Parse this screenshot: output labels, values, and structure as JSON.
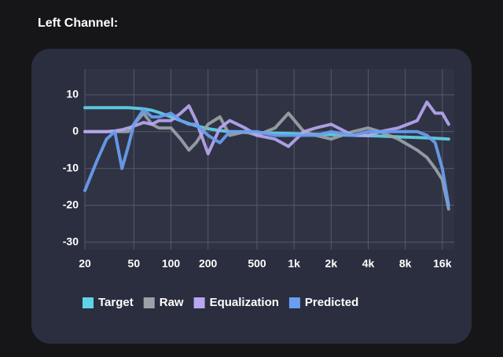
{
  "chart_data": {
    "type": "line",
    "title": "Left Channel:",
    "xscale": "log",
    "grid": true,
    "x": [
      20,
      25,
      30,
      35,
      40,
      45,
      50,
      60,
      70,
      80,
      100,
      120,
      140,
      160,
      200,
      250,
      300,
      400,
      500,
      700,
      900,
      1200,
      1500,
      2000,
      3000,
      4000,
      5000,
      7000,
      10000,
      12000,
      14000,
      16000,
      18000
    ],
    "xlim": [
      20,
      20000
    ],
    "xticks": [
      20,
      50,
      100,
      200,
      500,
      {
        "value": 1000,
        "label": "1k"
      },
      {
        "value": 2000,
        "label": "2k"
      },
      {
        "value": 4000,
        "label": "4k"
      },
      {
        "value": 8000,
        "label": "8k"
      },
      {
        "value": 16000,
        "label": "16k"
      }
    ],
    "ylim": [
      -32,
      17
    ],
    "yticks": [
      10,
      0,
      -10,
      -20,
      -30
    ],
    "series": [
      {
        "name": "Target",
        "color": "#5fd3e8",
        "values": [
          6.5,
          6.5,
          6.5,
          6.5,
          6.5,
          6.5,
          6.4,
          6.2,
          5.8,
          5.2,
          4,
          3,
          2.2,
          1.6,
          0.8,
          0.3,
          0,
          -0.2,
          -0.3,
          -0.4,
          -0.5,
          -0.6,
          -0.7,
          -0.8,
          -1,
          -1.1,
          -1.2,
          -1.4,
          -1.6,
          -1.7,
          -1.8,
          -1.9,
          -2
        ]
      },
      {
        "name": "Raw",
        "color": "#9aa3a8",
        "values": [
          0,
          0,
          0,
          0,
          0,
          0,
          2,
          5,
          2,
          1,
          1,
          -2,
          -5,
          -3,
          2,
          4,
          -1,
          0,
          -1,
          1,
          5,
          0,
          -1,
          -2,
          0,
          1,
          0,
          -2,
          -5,
          -7,
          -10,
          -13,
          -21
        ]
      },
      {
        "name": "Equalization",
        "color": "#b8a6f0",
        "values": [
          0,
          0,
          0,
          0.2,
          0.5,
          1,
          1.5,
          2.5,
          2,
          3,
          3,
          5,
          7,
          3,
          -6,
          1,
          3,
          1,
          -1,
          -2,
          -4,
          0,
          1,
          2,
          -1,
          -1,
          0,
          1,
          3,
          8,
          5,
          5,
          2
        ]
      },
      {
        "name": "Predicted",
        "color": "#6a9ef0",
        "values": [
          -16,
          -8,
          -2,
          0,
          -10,
          -4,
          2,
          6,
          4,
          4,
          5,
          3,
          2,
          2,
          -1,
          -3,
          0,
          0,
          0,
          -1,
          -1,
          -1,
          -1,
          0,
          -1,
          0,
          0,
          0,
          0,
          -1,
          -3,
          -10,
          -20
        ]
      }
    ]
  }
}
